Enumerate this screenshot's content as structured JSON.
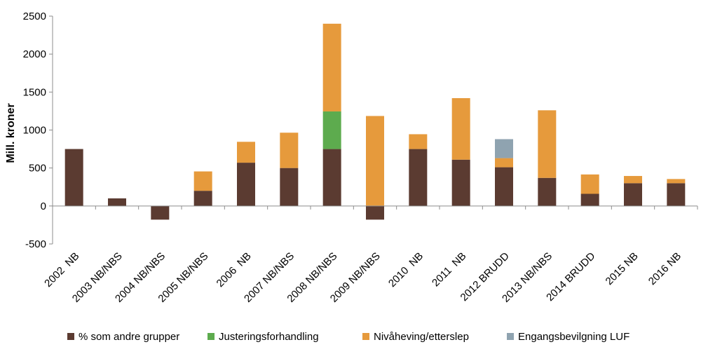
{
  "chart_data": {
    "type": "bar",
    "stacked": true,
    "title": "",
    "xlabel": "",
    "ylabel": "Mill. kroner",
    "ylim": [
      -500,
      2500
    ],
    "yticks": [
      -500,
      0,
      500,
      1000,
      1500,
      2000,
      2500
    ],
    "grid": false,
    "legend_position": "bottom",
    "categories": [
      "2002  NB",
      "2003 NB/NBS",
      "2004 NB/NBS",
      "2005 NB/NBS",
      "2006  NB",
      "2007 NB/NBS",
      "2008 NB/NBS",
      "2009 NB/NBS",
      "2010  NB",
      "2011  NB",
      "2012 BRUDD",
      "2013 NB/NBS",
      "2014 BRUDD",
      "2015 NB",
      "2016 NB"
    ],
    "series": [
      {
        "name": "% som andre grupper",
        "color": "#5b3b31",
        "values": [
          750,
          100,
          -180,
          200,
          570,
          500,
          750,
          -180,
          750,
          610,
          510,
          370,
          160,
          300,
          300
        ]
      },
      {
        "name": "Justeringsforhandling",
        "color": "#5dab4e",
        "values": [
          0,
          0,
          0,
          0,
          0,
          0,
          495,
          0,
          0,
          0,
          0,
          0,
          0,
          0,
          0
        ]
      },
      {
        "name": "Nivåheving/etterslep",
        "color": "#e69a3c",
        "values": [
          0,
          0,
          0,
          255,
          275,
          465,
          1155,
          1185,
          195,
          810,
          120,
          890,
          255,
          95,
          55
        ]
      },
      {
        "name": "Engangsbevilgning LUF",
        "color": "#8fa3b0",
        "values": [
          0,
          0,
          0,
          0,
          0,
          0,
          0,
          0,
          0,
          0,
          250,
          0,
          0,
          0,
          0
        ]
      }
    ]
  }
}
